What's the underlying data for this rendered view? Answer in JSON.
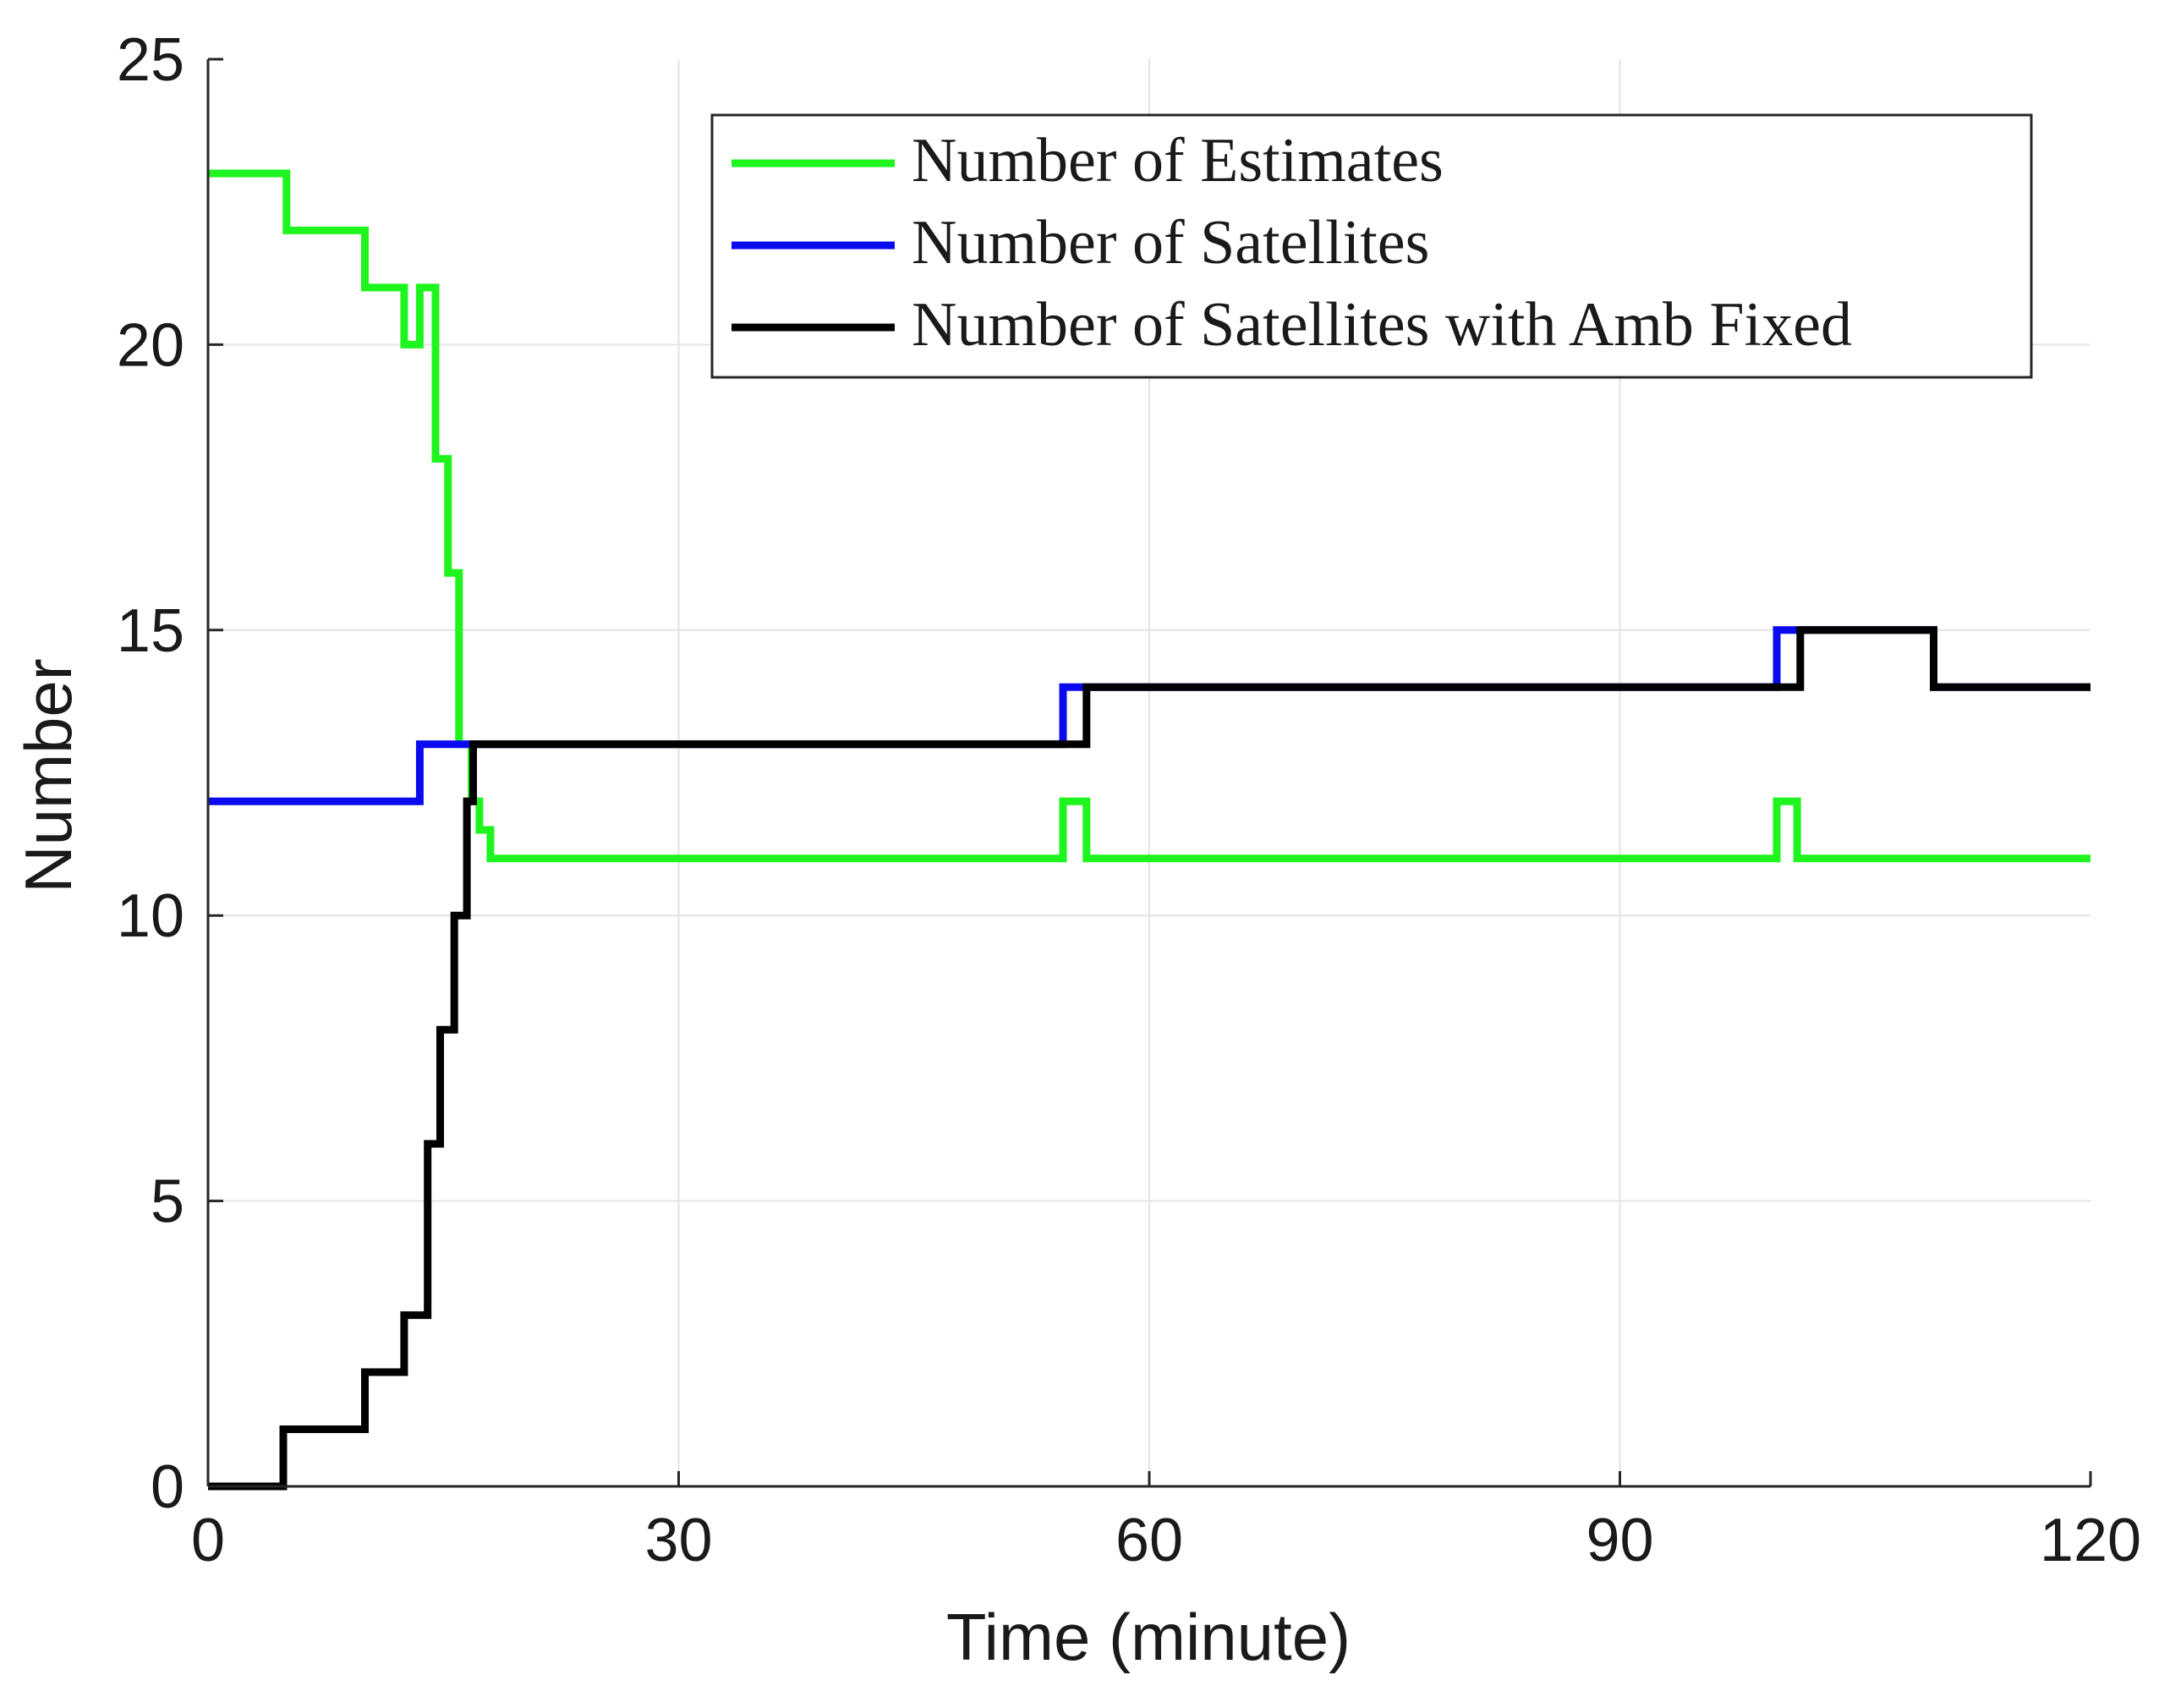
{
  "chart_data": {
    "type": "line",
    "xlabel": "Time (minute)",
    "ylabel": "Number",
    "xlim": [
      0,
      120
    ],
    "ylim": [
      0,
      25
    ],
    "xticks": [
      0,
      30,
      60,
      90,
      120
    ],
    "yticks": [
      0,
      5,
      10,
      15,
      20,
      25
    ],
    "xtick_labels": [
      "0",
      "30",
      "60",
      "90",
      "120"
    ],
    "ytick_labels": [
      "0",
      "5",
      "10",
      "15",
      "20",
      "25"
    ],
    "grid": true,
    "legend_position": "top-right",
    "series": [
      {
        "name": "Number of Estimates",
        "color": "#1ef51e",
        "x": [
          0,
          5,
          5,
          10,
          10,
          12.5,
          12.5,
          13.5,
          13.5,
          14.5,
          14.5,
          15.3,
          15.3,
          16,
          16,
          16.8,
          16.8,
          17.3,
          17.3,
          18,
          18,
          54.5,
          54.5,
          56,
          56,
          100,
          100,
          101.3,
          101.3,
          120
        ],
        "y": [
          23,
          23,
          22,
          22,
          21,
          21,
          20,
          20,
          21,
          21,
          18,
          18,
          16,
          16,
          13,
          13,
          12,
          12,
          11.5,
          11.5,
          11,
          11,
          12,
          12,
          11,
          11,
          12,
          12,
          11,
          11
        ]
      },
      {
        "name": "Number of Satellites",
        "color": "#0a0aee",
        "x": [
          0,
          13.5,
          13.5,
          120
        ],
        "y": [
          12,
          12,
          13,
          13
        ],
        "steps": [
          {
            "x": 54.5,
            "y": 14
          },
          {
            "x": 100,
            "y": 15
          },
          {
            "x": 110,
            "y": 14
          }
        ]
      },
      {
        "name": "Number of Satellites with Amb Fixed",
        "color": "#000000",
        "x": [
          0,
          4.8,
          4.8,
          10,
          10,
          12.5,
          12.5,
          14,
          14,
          14.8,
          14.8,
          15.7,
          15.7,
          16.5,
          16.5,
          16.9,
          16.9,
          17.2,
          17.2,
          56,
          56,
          101.5,
          101.5,
          110,
          110,
          120
        ],
        "y": [
          0,
          0,
          1,
          1,
          2,
          2,
          3,
          3,
          6,
          6,
          8,
          8,
          10,
          10,
          12,
          12,
          13,
          13,
          13,
          13,
          14,
          14,
          15,
          15,
          14,
          14
        ]
      }
    ]
  }
}
